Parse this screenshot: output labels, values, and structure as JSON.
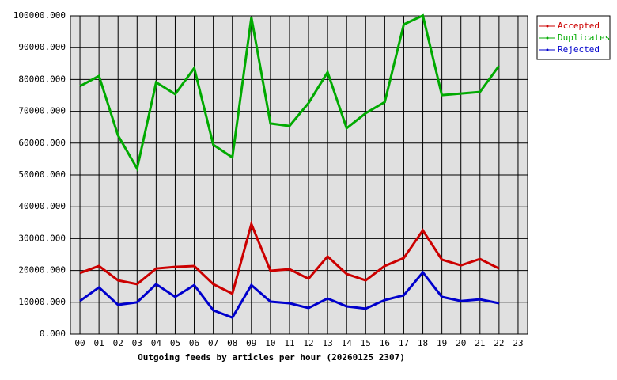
{
  "chart_data": {
    "type": "line",
    "title": "Outgoing feeds by articles per hour (20260125 2307)",
    "categories": [
      "00",
      "01",
      "02",
      "03",
      "04",
      "05",
      "06",
      "07",
      "08",
      "09",
      "10",
      "11",
      "12",
      "13",
      "14",
      "15",
      "16",
      "17",
      "18",
      "19",
      "20",
      "21",
      "22",
      "23"
    ],
    "series": [
      {
        "name": "Accepted",
        "color": "#cc0000",
        "values": [
          19200,
          21400,
          16900,
          15700,
          20600,
          21100,
          21400,
          15700,
          12700,
          34600,
          19900,
          20400,
          17400,
          24400,
          18900,
          16900,
          21400,
          23900,
          32600,
          23400,
          21600,
          23600,
          20600,
          null
        ]
      },
      {
        "name": "Duplicates",
        "color": "#00aa00",
        "values": [
          77900,
          81100,
          62400,
          52000,
          79100,
          75400,
          83600,
          59500,
          55500,
          99500,
          66200,
          65400,
          72600,
          82300,
          64700,
          69400,
          72900,
          97300,
          100100,
          75100,
          75600,
          76100,
          84300,
          null
        ]
      },
      {
        "name": "Rejected",
        "color": "#0000cc",
        "values": [
          10400,
          14700,
          9200,
          10000,
          15700,
          11700,
          15400,
          7500,
          5200,
          15400,
          10200,
          9700,
          8200,
          11200,
          8700,
          8000,
          10700,
          12200,
          19400,
          11700,
          10400,
          10900,
          9700,
          null
        ]
      }
    ],
    "ylim": [
      0,
      100000
    ],
    "yticks": [
      {
        "value": 0,
        "label": "0.000"
      },
      {
        "value": 10000,
        "label": "10000.000"
      },
      {
        "value": 20000,
        "label": "20000.000"
      },
      {
        "value": 30000,
        "label": "30000.000"
      },
      {
        "value": 40000,
        "label": "40000.000"
      },
      {
        "value": 50000,
        "label": "50000.000"
      },
      {
        "value": 60000,
        "label": "60000.000"
      },
      {
        "value": 70000,
        "label": "70000.000"
      },
      {
        "value": 80000,
        "label": "80000.000"
      },
      {
        "value": 90000,
        "label": "90000.000"
      },
      {
        "value": 100000,
        "label": "100000.000"
      }
    ],
    "grid": true,
    "legend": "top-right"
  }
}
